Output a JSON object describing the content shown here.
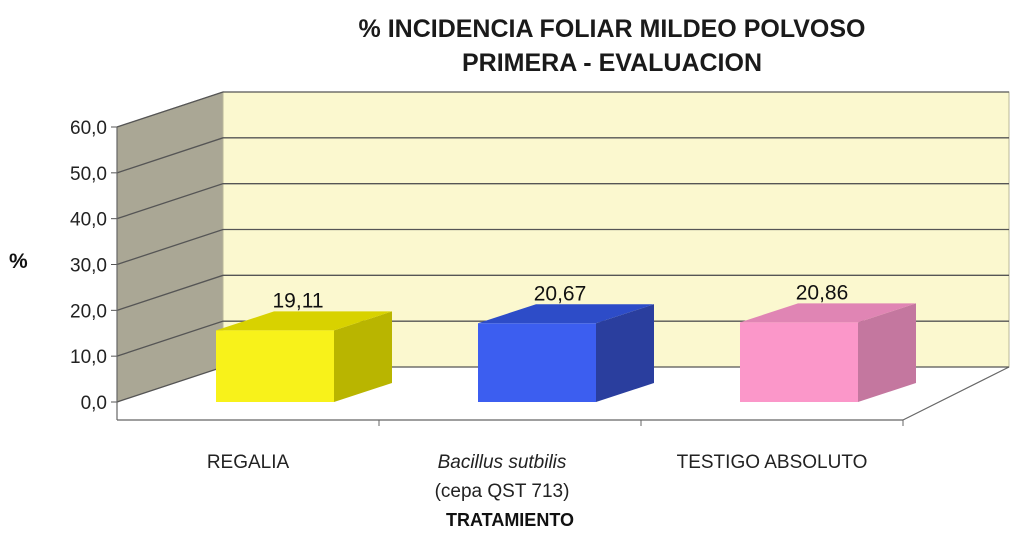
{
  "chart_data": {
    "type": "bar",
    "title_lines": [
      "% INCIDENCIA  FOLIAR MILDEO POLVOSO",
      "PRIMERA - EVALUACION"
    ],
    "ylabel": "%",
    "xlabel": "TRATAMIENTO",
    "ylim": [
      0,
      60
    ],
    "yticks": [
      "0,0",
      "10,0",
      "20,0",
      "30,0",
      "40,0",
      "50,0",
      "60,0"
    ],
    "grid": true,
    "categories": [
      {
        "lines": [
          "REGALIA"
        ],
        "italic_first_line": false
      },
      {
        "lines": [
          "Bacillus sutbilis",
          "(cepa QST 713)"
        ],
        "italic_first_line": true
      },
      {
        "lines": [
          "TESTIGO ABSOLUTO"
        ],
        "italic_first_line": false
      }
    ],
    "values": [
      19.11,
      20.67,
      20.86
    ],
    "value_labels": [
      "19,11",
      "20,67",
      "20,86"
    ],
    "colors": [
      {
        "front": "#f8f21a",
        "top": "#d8d200",
        "side": "#b9b500"
      },
      {
        "front": "#3c5ef0",
        "top": "#2d4cc8",
        "side": "#2a3e9e"
      },
      {
        "front": "#fb97c9",
        "top": "#e085b4",
        "side": "#c4779f"
      }
    ],
    "wall_color": "#fbf8cf",
    "side_wall_color": "#aaa795"
  }
}
